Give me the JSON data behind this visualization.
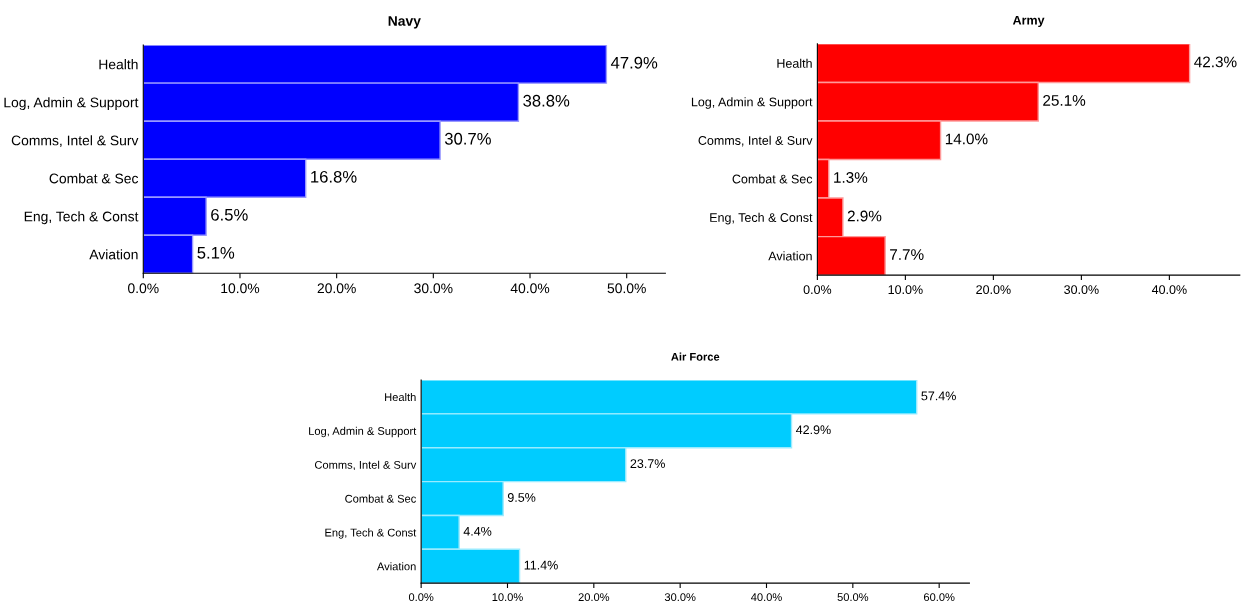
{
  "chart_data": [
    {
      "type": "bar",
      "orientation": "horizontal",
      "title": "Navy",
      "categories": [
        "Health",
        "Log, Admin & Support",
        "Comms, Intel & Surv",
        "Combat & Sec",
        "Eng, Tech & Const",
        "Aviation"
      ],
      "series": [
        {
          "color": "#0000ff",
          "values": [
            47.9,
            38.8,
            30.7,
            16.8,
            6.5,
            5.1
          ],
          "value_labels": [
            "47.9%",
            "38.8%",
            "30.7%",
            "16.8%",
            "6.5%",
            "5.1%"
          ]
        }
      ],
      "xlim": [
        0,
        54
      ],
      "xticks": [
        {
          "value": 0,
          "label": "0.0%"
        },
        {
          "value": 10,
          "label": "10.0%"
        },
        {
          "value": 20,
          "label": "20.0%"
        },
        {
          "value": 30,
          "label": "30.0%"
        },
        {
          "value": 40,
          "label": "40.0%"
        },
        {
          "value": 50,
          "label": "50.0%"
        }
      ],
      "grid": false,
      "legend": false
    },
    {
      "type": "bar",
      "orientation": "horizontal",
      "title": "Army",
      "categories": [
        "Health",
        "Log, Admin & Support",
        "Comms, Intel & Surv",
        "Combat & Sec",
        "Eng, Tech & Const",
        "Aviation"
      ],
      "series": [
        {
          "color": "#ff0000",
          "values": [
            42.3,
            25.1,
            14.0,
            1.3,
            2.9,
            7.7
          ],
          "value_labels": [
            "42.3%",
            "25.1%",
            "14.0%",
            "1.3%",
            "2.9%",
            "7.7%"
          ]
        }
      ],
      "xlim": [
        0,
        48
      ],
      "xticks": [
        {
          "value": 0,
          "label": "0.0%"
        },
        {
          "value": 10,
          "label": "10.0%"
        },
        {
          "value": 20,
          "label": "20.0%"
        },
        {
          "value": 30,
          "label": "30.0%"
        },
        {
          "value": 40,
          "label": "40.0%"
        }
      ],
      "grid": false,
      "legend": false
    },
    {
      "type": "bar",
      "orientation": "horizontal",
      "title": "Air Force",
      "categories": [
        "Health",
        "Log, Admin & Support",
        "Comms, Intel & Surv",
        "Combat & Sec",
        "Eng, Tech & Const",
        "Aviation"
      ],
      "series": [
        {
          "color": "#00ccff",
          "values": [
            57.4,
            42.9,
            23.7,
            9.5,
            4.4,
            11.4
          ],
          "value_labels": [
            "57.4%",
            "42.9%",
            "23.7%",
            "9.5%",
            "4.4%",
            "11.4%"
          ]
        }
      ],
      "xlim": [
        0,
        63.5
      ],
      "xticks": [
        {
          "value": 0,
          "label": "0.0%"
        },
        {
          "value": 10,
          "label": "10.0%"
        },
        {
          "value": 20,
          "label": "20.0%"
        },
        {
          "value": 30,
          "label": "30.0%"
        },
        {
          "value": 40,
          "label": "40.0%"
        },
        {
          "value": 50,
          "label": "50.0%"
        },
        {
          "value": 60,
          "label": "60.0%"
        }
      ],
      "grid": false,
      "legend": false
    }
  ]
}
